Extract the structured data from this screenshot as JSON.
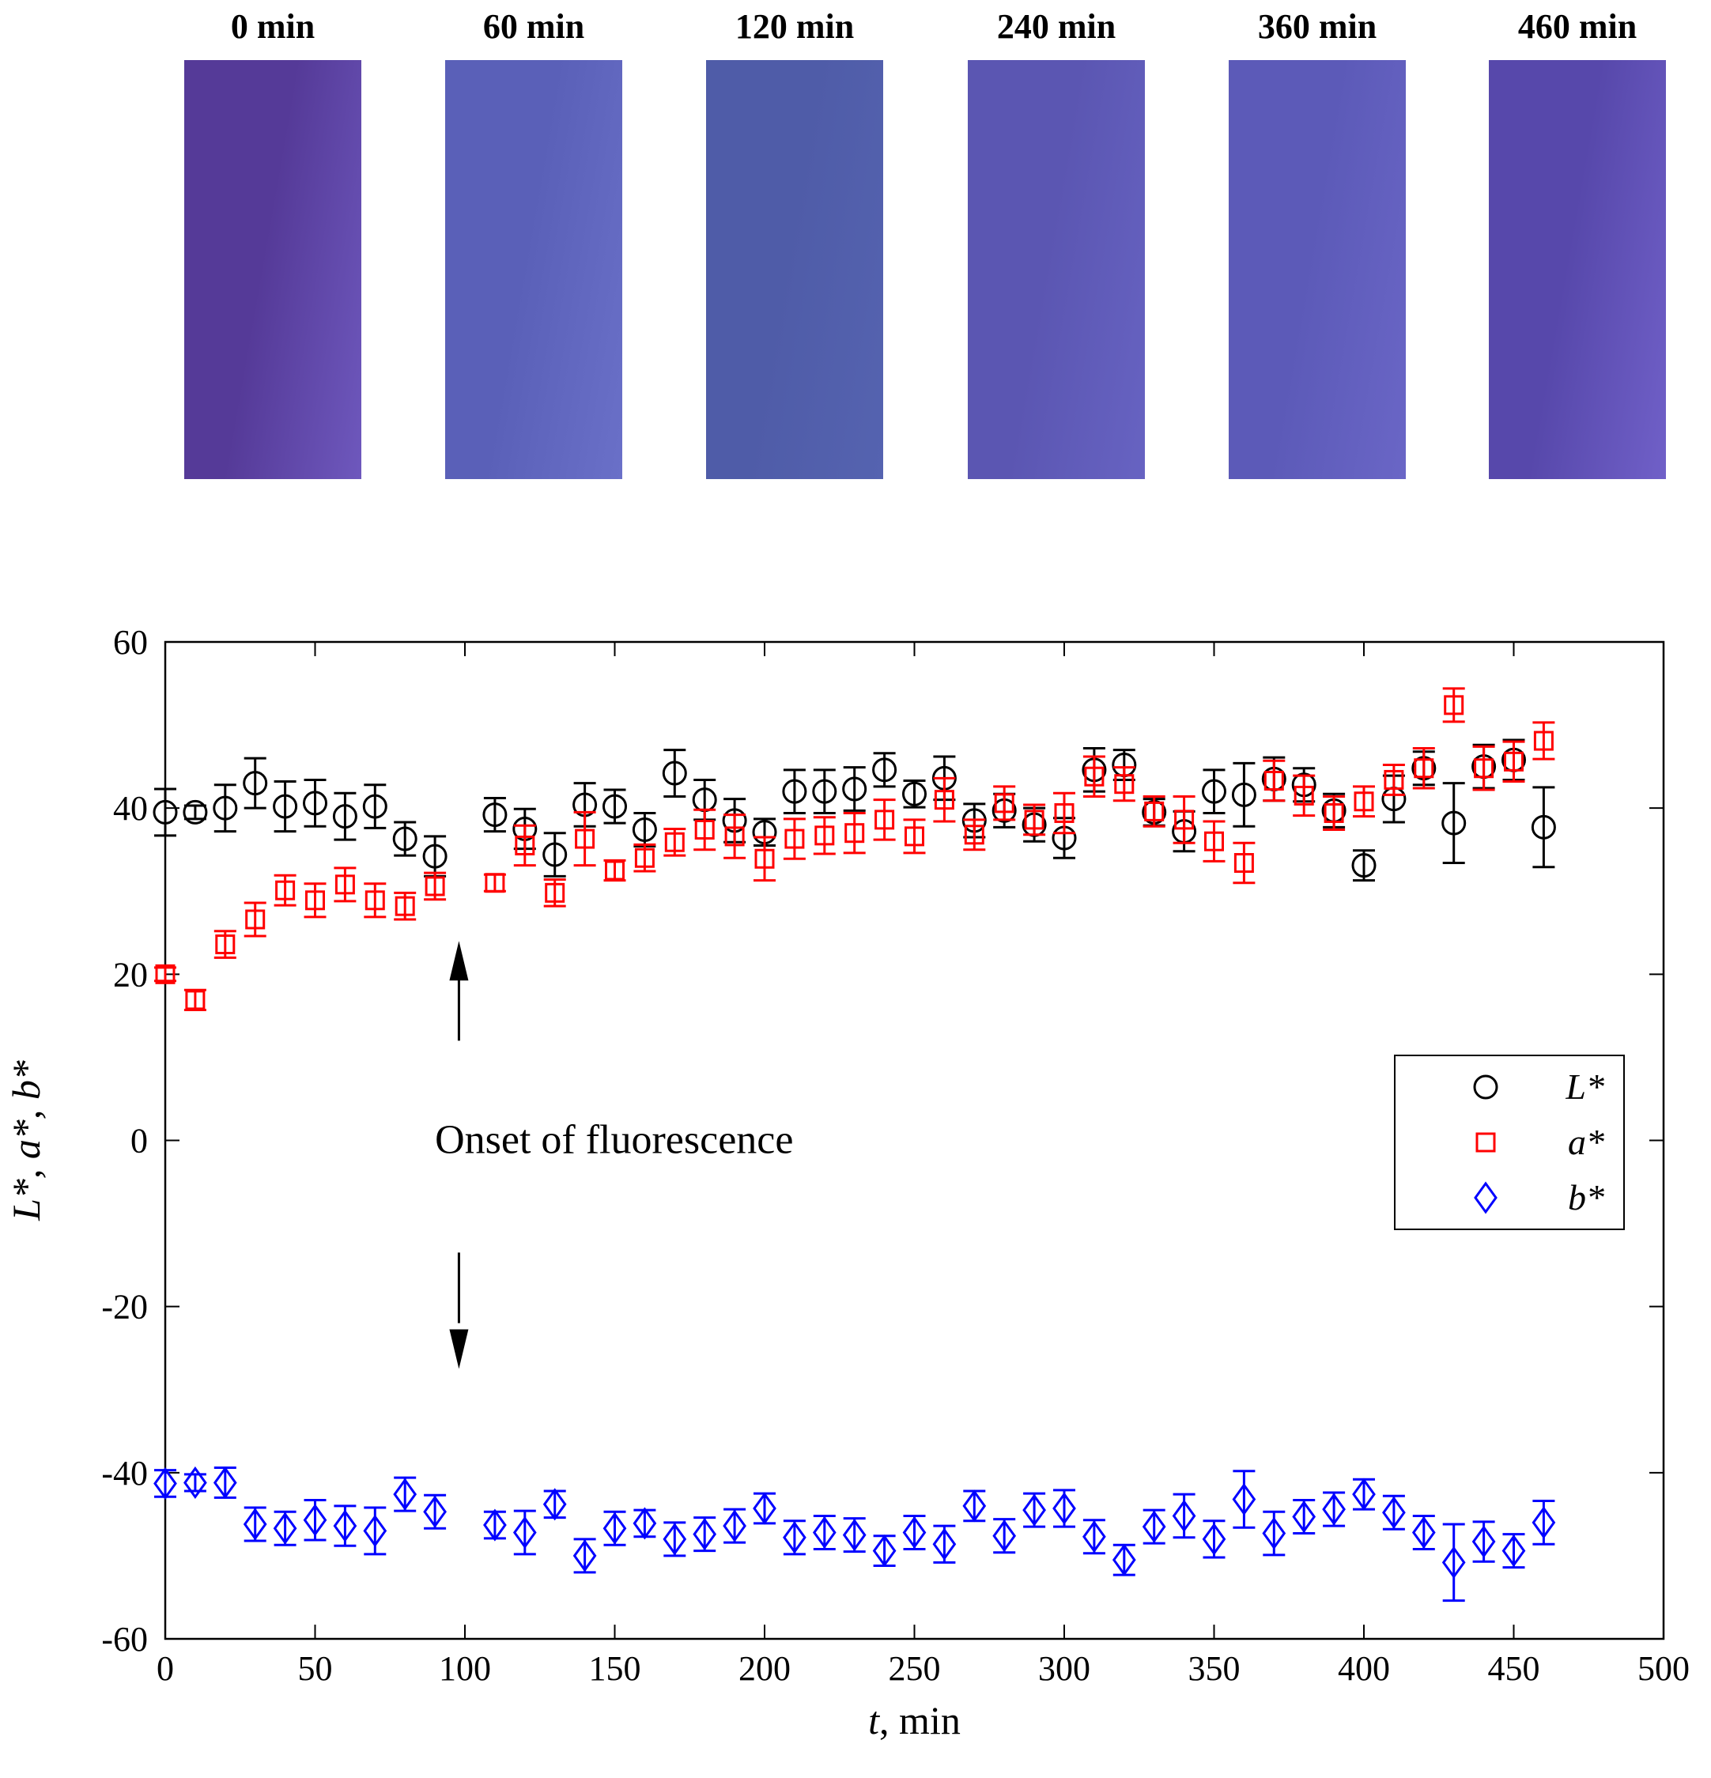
{
  "swatches": [
    {
      "label": "0 min",
      "color": "#553a98",
      "edge": "#6e58bd"
    },
    {
      "label": "60 min",
      "color": "#5a60b8",
      "edge": "#6a70c8"
    },
    {
      "label": "120 min",
      "color": "#4f5ca8",
      "edge": "#5563b0"
    },
    {
      "label": "240 min",
      "color": "#5b56b2",
      "edge": "#6763c2"
    },
    {
      "label": "360 min",
      "color": "#5c5ab8",
      "edge": "#6a66c6"
    },
    {
      "label": "460 min",
      "color": "#5748ab",
      "edge": "#7060c8"
    }
  ],
  "annotation": "Onset of fluorescence",
  "chart_data": {
    "type": "scatter",
    "xlabel_var": "t",
    "xlabel_unit": "min",
    "ylabel": "L*, a*, b*",
    "xlim": [
      0,
      500
    ],
    "ylim": [
      -60,
      60
    ],
    "xticks": [
      0,
      50,
      100,
      150,
      200,
      250,
      300,
      350,
      400,
      450,
      500
    ],
    "yticks": [
      -60,
      -40,
      -20,
      0,
      20,
      40,
      60
    ],
    "legend_position": "right",
    "error_bars": true,
    "series": [
      {
        "name": "L*",
        "marker": "circle",
        "color": "#000000",
        "x": [
          0,
          10,
          20,
          30,
          40,
          50,
          60,
          70,
          80,
          90,
          110,
          120,
          130,
          140,
          150,
          160,
          170,
          180,
          190,
          200,
          210,
          220,
          230,
          240,
          250,
          260,
          270,
          280,
          290,
          300,
          310,
          320,
          330,
          340,
          350,
          360,
          370,
          380,
          390,
          400,
          410,
          420,
          430,
          440,
          450,
          460
        ],
        "y": [
          39.5,
          39.5,
          40,
          43,
          40.2,
          40.6,
          39,
          40.2,
          36.3,
          34.2,
          39.2,
          37.5,
          34.4,
          40.4,
          40.2,
          37.4,
          44.2,
          41,
          38.5,
          37.1,
          42,
          42,
          42.3,
          44.6,
          41.7,
          43.6,
          38.5,
          39.7,
          38,
          36.4,
          44.6,
          45.2,
          39.5,
          37.2,
          42,
          41.6,
          43.5,
          42.8,
          39.7,
          33.1,
          41.1,
          44.8,
          38.2,
          45,
          45.8,
          37.7
        ],
        "err": [
          2.8,
          0.8,
          2.8,
          3.0,
          3.0,
          2.8,
          2.8,
          2.6,
          2.0,
          2.4,
          2.0,
          2.4,
          2.6,
          2.6,
          2.0,
          2.0,
          2.8,
          2.4,
          2.6,
          1.6,
          2.6,
          2.6,
          2.6,
          2.0,
          1.6,
          2.6,
          2.0,
          2.0,
          2.0,
          2.4,
          2.6,
          1.8,
          1.6,
          2.4,
          2.6,
          3.8,
          2.6,
          2.0,
          2.0,
          1.8,
          2.8,
          2.0,
          4.8,
          2.6,
          2.4,
          4.8
        ]
      },
      {
        "name": "a*",
        "marker": "square",
        "color": "#ff0000",
        "x": [
          0,
          10,
          20,
          30,
          40,
          50,
          60,
          70,
          80,
          90,
          110,
          120,
          130,
          140,
          150,
          160,
          170,
          180,
          190,
          200,
          210,
          220,
          230,
          240,
          250,
          260,
          270,
          280,
          290,
          300,
          310,
          320,
          330,
          340,
          350,
          360,
          370,
          380,
          390,
          400,
          410,
          420,
          430,
          440,
          450,
          460
        ],
        "y": [
          20,
          16.9,
          23.6,
          26.6,
          30.1,
          28.9,
          30.8,
          28.9,
          28.2,
          30.6,
          31,
          35.5,
          29.8,
          36.3,
          32.5,
          34,
          35.9,
          37.4,
          36.6,
          33.9,
          36.3,
          36.7,
          37,
          38.6,
          36.6,
          41,
          36.8,
          40.6,
          38.6,
          39.4,
          43.8,
          42.9,
          39.6,
          38.6,
          36,
          33.4,
          43.3,
          41.5,
          39.4,
          40.8,
          43.4,
          44.8,
          52.4,
          44.8,
          45.6,
          48.1
        ]
      },
      {
        "name": "b*",
        "marker": "diamond",
        "color": "#0000ff",
        "x": [
          0,
          10,
          20,
          30,
          40,
          50,
          60,
          70,
          80,
          90,
          110,
          120,
          130,
          140,
          150,
          160,
          170,
          180,
          190,
          200,
          210,
          220,
          230,
          240,
          250,
          260,
          270,
          280,
          290,
          300,
          310,
          320,
          330,
          340,
          350,
          360,
          370,
          380,
          390,
          400,
          410,
          420,
          430,
          440,
          450,
          460
        ],
        "y": [
          -41.3,
          -41.2,
          -41.2,
          -46.2,
          -46.7,
          -45.7,
          -46.4,
          -47,
          -42.6,
          -44.7,
          -46.3,
          -47.2,
          -43.8,
          -50,
          -46.7,
          -46.1,
          -48,
          -47.4,
          -46.4,
          -44.3,
          -47.8,
          -47.2,
          -47.5,
          -49.4,
          -47.2,
          -48.6,
          -44,
          -47.6,
          -44.5,
          -44.3,
          -47.7,
          -50.5,
          -46.5,
          -45.2,
          -48,
          -43.2,
          -47.3,
          -45.3,
          -44.4,
          -42.6,
          -44.8,
          -47.2,
          -50.8,
          -48.3,
          -49.4,
          -46
        ]
      }
    ]
  }
}
